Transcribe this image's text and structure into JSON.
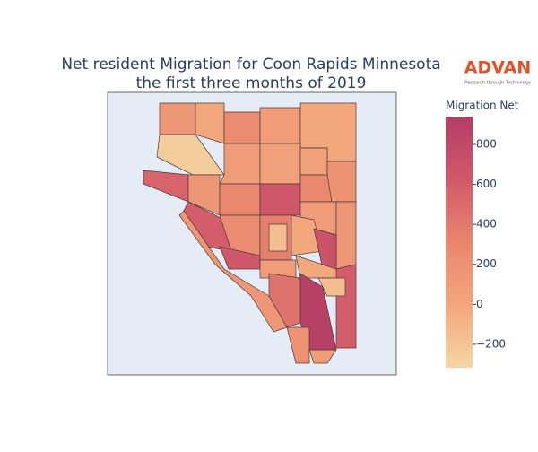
{
  "chart_data": {
    "type": "choropleth",
    "title_lines": [
      "Net resident Migration for Coon Rapids Minnesota",
      "the first three months of 2019"
    ],
    "colorbar_title": "Migration Net",
    "zlim": [
      -317,
      939
    ],
    "zticks": [
      {
        "value": -200,
        "label": "−200"
      },
      0,
      200,
      400,
      600,
      800
    ],
    "values": [
      150,
      0,
      250,
      100,
      0,
      -250,
      100,
      50,
      50,
      200,
      550,
      150,
      300,
      650,
      300,
      100,
      150,
      600,
      250,
      350,
      -150,
      0,
      700,
      650,
      100,
      0,
      450,
      900,
      600,
      -150,
      200,
      100,
      150
    ],
    "logo": {
      "name": "ADVAN",
      "tagline": "Research through Technology"
    }
  }
}
